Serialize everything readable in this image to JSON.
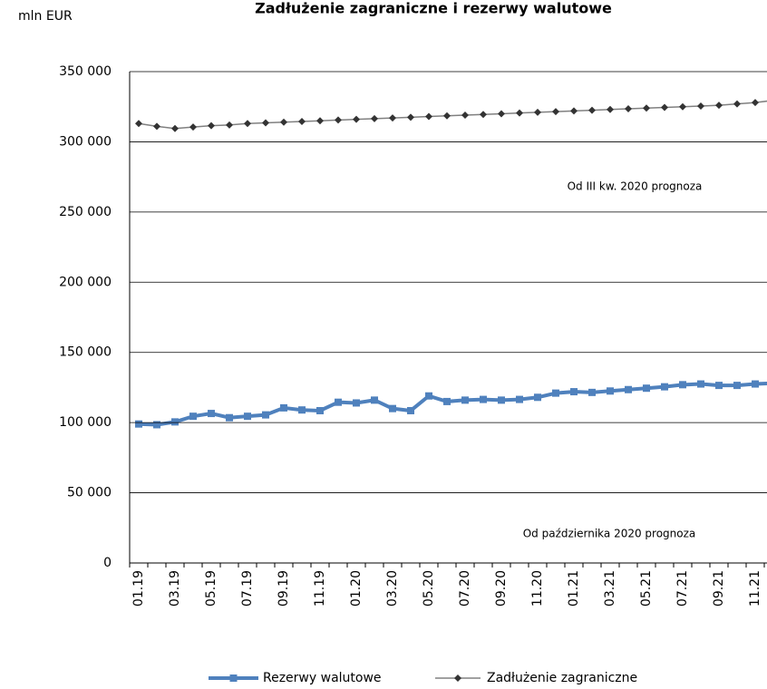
{
  "chart_data": {
    "type": "line",
    "title": "Zadłużenie zagraniczne i rezerwy walutowe",
    "y_label": "mln EUR",
    "annotations": [
      "Od III kw. 2020 prognoza",
      "Od października 2020 prognoza"
    ],
    "categories": [
      "01.19",
      null,
      "03.19",
      null,
      "05.19",
      null,
      "07.19",
      null,
      "09.19",
      null,
      "11.19",
      null,
      "01.20",
      null,
      "03.20",
      null,
      "05.20",
      null,
      "07.20",
      null,
      "09.20",
      null,
      "11.20",
      null,
      "01.21",
      null,
      "03.21",
      null,
      "05.21",
      null,
      "07.21",
      null,
      "09.21",
      null,
      "11.21",
      null
    ],
    "series": [
      {
        "name": "Rezerwy walutowe",
        "color": "#4f81bd",
        "marker": "square",
        "values": [
          99000,
          98500,
          100500,
          104500,
          106500,
          103500,
          104500,
          105500,
          110500,
          109000,
          108500,
          114500,
          114000,
          116000,
          110000,
          108500,
          119000,
          115000,
          116000,
          116500,
          116000,
          116500,
          118000,
          121000,
          122000,
          121500,
          122500,
          123500,
          124500,
          125500,
          127000,
          127500,
          126500,
          126500,
          127500,
          128000
        ]
      },
      {
        "name": "Zadłużenie zagraniczne",
        "color": "#333333",
        "marker": "diamond",
        "values": [
          313000,
          311000,
          309500,
          310500,
          311500,
          312000,
          313000,
          313500,
          314000,
          314500,
          315000,
          315500,
          316000,
          316500,
          317000,
          317500,
          318000,
          318500,
          319000,
          319500,
          320000,
          320500,
          321000,
          321500,
          322000,
          322500,
          323000,
          323500,
          324000,
          324500,
          325000,
          325500,
          326000,
          327000,
          328000,
          329500
        ]
      }
    ],
    "ylim": [
      0,
      350000
    ],
    "yticks": [
      0,
      {
        "value": 50000,
        "label": "50 000"
      },
      {
        "value": 100000,
        "label": "100 000"
      },
      {
        "value": 150000,
        "label": "150 000"
      },
      {
        "value": 200000,
        "label": "200 000"
      },
      {
        "value": 250000,
        "label": "250 000"
      },
      {
        "value": 300000,
        "label": "300 000"
      },
      {
        "value": 350000,
        "label": "350 000"
      }
    ],
    "grid": true,
    "legend": "bottom"
  }
}
